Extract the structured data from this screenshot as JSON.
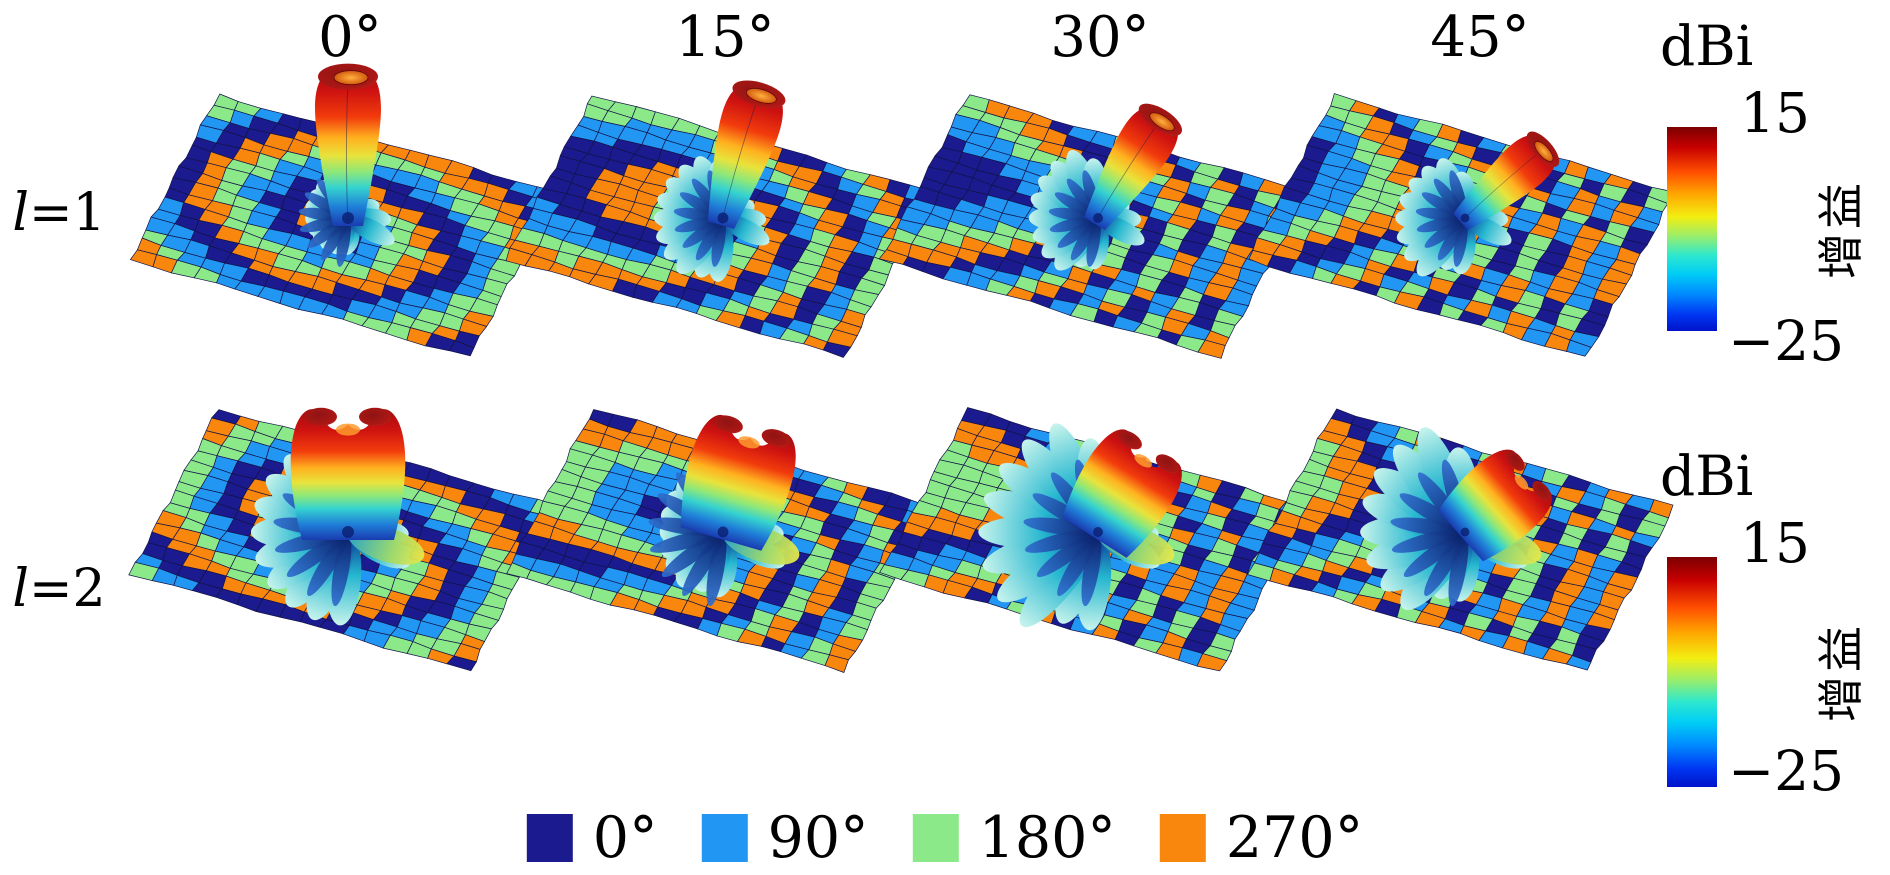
{
  "chart_data": {
    "type": "heatmap",
    "subtype": "3d-radiation-pattern-surfaces",
    "description": "2x4 grid of simulated 3D gain patterns of OAM vortex beams above 2-bit coding metasurfaces; rows are OAM mode l, columns are beam steering angle; each surface plate is a 16x16 grid of unit cells colored by phase state.",
    "rows": [
      {
        "label": "l=1",
        "symbol": "l",
        "rest": "=1",
        "l": 1
      },
      {
        "label": "l=2",
        "symbol": "l",
        "rest": "=2",
        "l": 2
      }
    ],
    "columns": [
      {
        "label": "0°",
        "steer_deg": 0
      },
      {
        "label": "15°",
        "steer_deg": 15
      },
      {
        "label": "30°",
        "steer_deg": 30
      },
      {
        "label": "45°",
        "steer_deg": 45
      }
    ],
    "grid": {
      "size": 16,
      "phase_states_deg": [
        0,
        90,
        180,
        270
      ]
    },
    "legend": [
      {
        "label": "0°",
        "color": "#1b1a8e"
      },
      {
        "label": "90°",
        "color": "#2196f3"
      },
      {
        "label": "180°",
        "color": "#8ce98a"
      },
      {
        "label": "270°",
        "color": "#f9860d"
      }
    ],
    "colorbar": {
      "title": "dBi",
      "axis_label": "增益",
      "max": 15,
      "min": -25,
      "max_label": "15",
      "min_label": "−25",
      "colormap": "jet",
      "stops": [
        {
          "p": 0,
          "c": "#7c0000"
        },
        {
          "p": 10,
          "c": "#c80000"
        },
        {
          "p": 22,
          "c": "#ff4e00"
        },
        {
          "p": 33,
          "c": "#ffa700"
        },
        {
          "p": 44,
          "c": "#f2ee11"
        },
        {
          "p": 53,
          "c": "#9fee66"
        },
        {
          "p": 63,
          "c": "#2de8cf"
        },
        {
          "p": 72,
          "c": "#00cdf5"
        },
        {
          "p": 82,
          "c": "#0089ff"
        },
        {
          "p": 92,
          "c": "#0036f2"
        },
        {
          "p": 100,
          "c": "#0013c9"
        }
      ]
    }
  }
}
